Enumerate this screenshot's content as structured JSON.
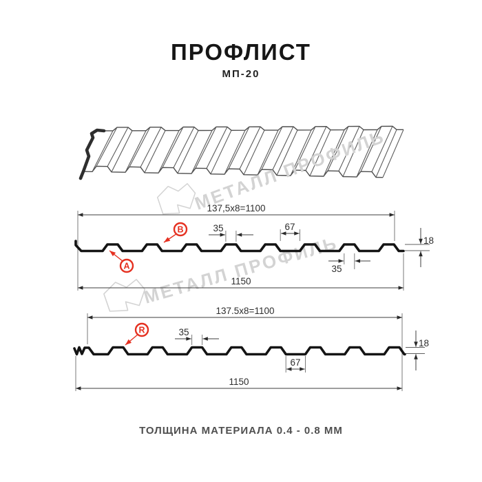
{
  "title": "ПРОФЛИСТ",
  "subtitle": "МП-20",
  "footer": "ТОЛЩИНА МАТЕРИАЛА 0.4 - 0.8 ММ",
  "watermark": {
    "text": "МЕТАЛЛ ПРОФИЛЬ"
  },
  "view_top": {
    "dim_pitch": "137,5x8=1100",
    "dim_overall": "1150",
    "dim_rib_top": "35",
    "dim_flat": "67",
    "dim_height": "18",
    "dim_rib_bottom": "35",
    "label_a": "A",
    "label_b": "B"
  },
  "view_bottom": {
    "dim_pitch": "137.5x8=1100",
    "dim_overall": "1150",
    "dim_rib_top": "35",
    "dim_flat": "67",
    "dim_height": "18",
    "label_r": "R"
  },
  "colors": {
    "accent_red": "#e53020",
    "line_black": "#141414",
    "watermark_gray": "#d3d3d3"
  }
}
